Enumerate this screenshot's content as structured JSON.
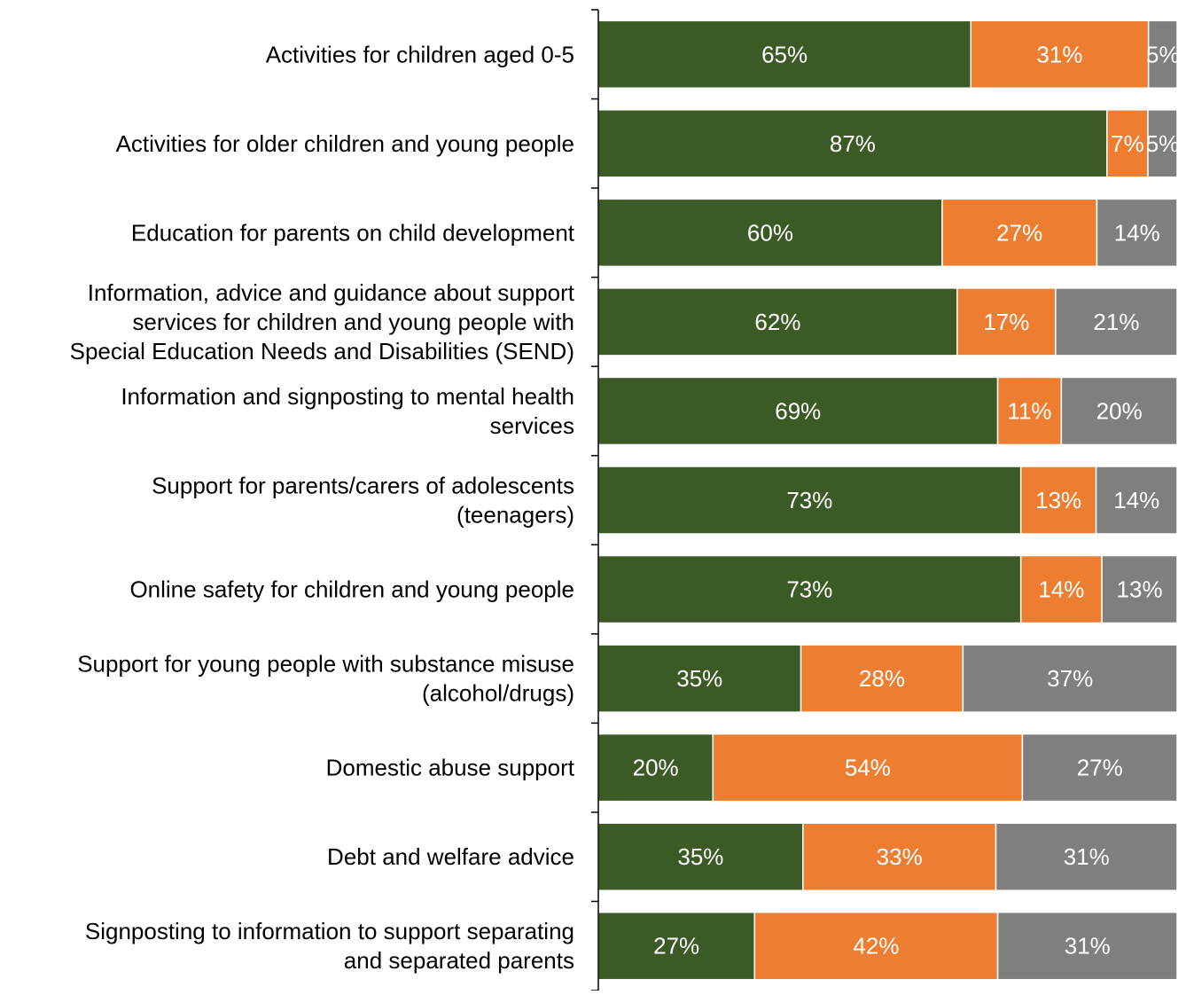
{
  "chart_data": {
    "type": "bar",
    "orientation": "horizontal",
    "stacked": true,
    "percent_stacked": true,
    "xlim": [
      0,
      100
    ],
    "grid": false,
    "categories": [
      "Activities for children aged 0-5",
      "Activities for older children and young people",
      "Education for parents on child development",
      "Information, advice and guidance about support services for children and young people with Special Education Needs and Disabilities (SEND)",
      "Information and signposting to mental health services",
      "Support for parents/carers of adolescents (teenagers)",
      "Online safety for children and young people",
      "Support for young people with substance misuse (alcohol/drugs)",
      "Domestic abuse support",
      "Debt and welfare advice",
      "Signposting to information to support separating and separated parents"
    ],
    "category_lines": [
      [
        "Activities for children aged 0-5"
      ],
      [
        "Activities for older children and young people"
      ],
      [
        "Education for parents on child development"
      ],
      [
        "Information, advice and guidance about support",
        "services for children and young people with",
        "Special Education Needs and Disabilities (SEND)"
      ],
      [
        "Information and signposting to mental health",
        "services"
      ],
      [
        "Support for parents/carers of adolescents",
        "(teenagers)"
      ],
      [
        "Online safety for children and young people"
      ],
      [
        "Support for young people with substance misuse",
        "(alcohol/drugs)"
      ],
      [
        "Domestic abuse support"
      ],
      [
        "Debt and welfare advice"
      ],
      [
        "Signposting to information to support separating",
        "and separated parents"
      ]
    ],
    "series": [
      {
        "color": "#3b5a25",
        "values": [
          65,
          87,
          60,
          62,
          69,
          73,
          73,
          35,
          20,
          35,
          27
        ]
      },
      {
        "color": "#ed7d31",
        "values": [
          31,
          7,
          27,
          17,
          11,
          13,
          14,
          28,
          54,
          33,
          42
        ]
      },
      {
        "color": "#7f7f7f",
        "values": [
          5,
          5,
          14,
          21,
          20,
          14,
          13,
          37,
          27,
          31,
          31
        ]
      }
    ],
    "data_labels": [
      [
        "65%",
        "31%",
        "5%"
      ],
      [
        "87%",
        "7%",
        "5%"
      ],
      [
        "60%",
        "27%",
        "14%"
      ],
      [
        "62%",
        "17%",
        "21%"
      ],
      [
        "69%",
        "11%",
        "20%"
      ],
      [
        "73%",
        "13%",
        "14%"
      ],
      [
        "73%",
        "14%",
        "13%"
      ],
      [
        "35%",
        "28%",
        "37%"
      ],
      [
        "20%",
        "54%",
        "27%"
      ],
      [
        "35%",
        "33%",
        "31%"
      ],
      [
        "27%",
        "42%",
        "31%"
      ]
    ]
  }
}
